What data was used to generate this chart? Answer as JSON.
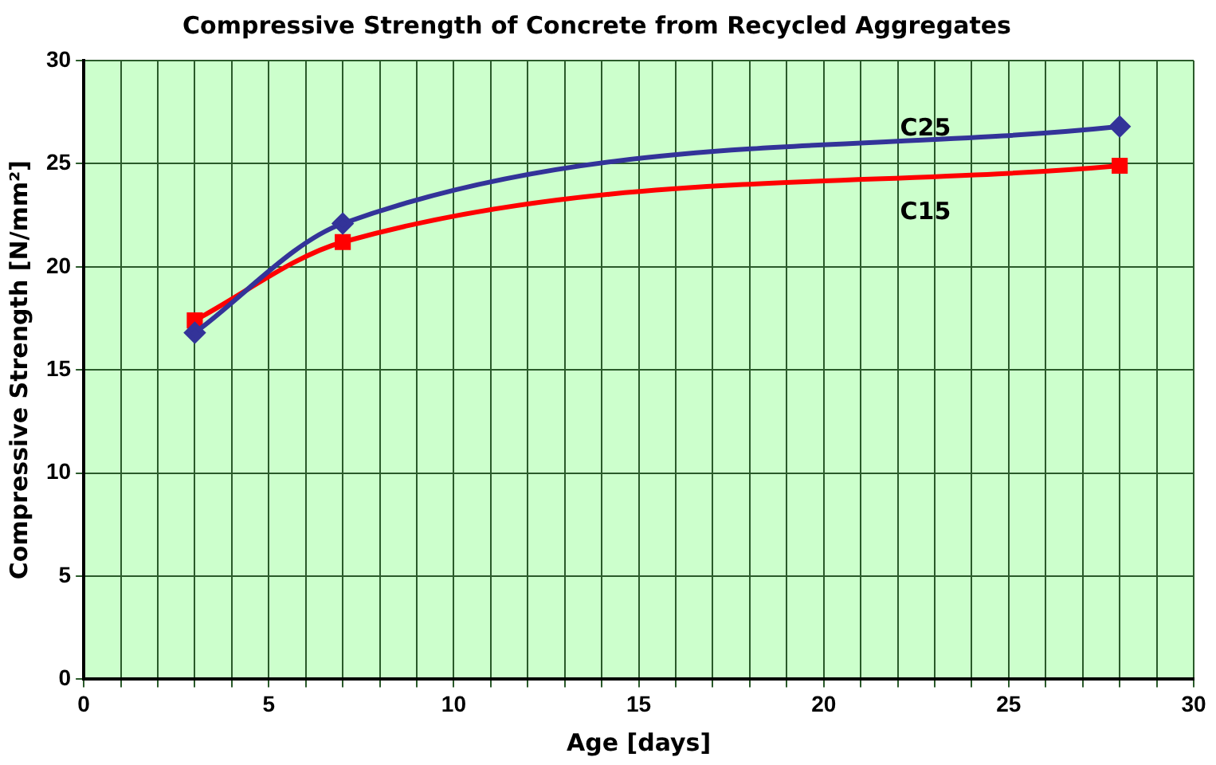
{
  "chart_data": {
    "type": "line",
    "title": "Compressive Strength of Concrete from Recycled Aggregates",
    "xlabel": "Age [days]",
    "ylabel": "Compressive Strength [N/mm²]",
    "x": [
      3,
      7,
      28
    ],
    "series": [
      {
        "name": "C25",
        "color": "#333399",
        "values": [
          16.8,
          22.1,
          26.8
        ],
        "marker": "diamond"
      },
      {
        "name": "C15",
        "color": "#ff0000",
        "values": [
          17.4,
          21.2,
          24.9
        ],
        "marker": "square"
      }
    ],
    "xlim": [
      0,
      30
    ],
    "ylim": [
      0,
      30
    ],
    "xticks": [
      0,
      {
        "value": 1,
        "label": null
      },
      {
        "value": 2,
        "label": null
      },
      {
        "value": 3,
        "label": null
      },
      {
        "value": 4,
        "label": null
      },
      5,
      {
        "value": 6,
        "label": null
      },
      {
        "value": 7,
        "label": null
      },
      {
        "value": 8,
        "label": null
      },
      {
        "value": 9,
        "label": null
      },
      10,
      {
        "value": 11,
        "label": null
      },
      {
        "value": 12,
        "label": null
      },
      {
        "value": 13,
        "label": null
      },
      {
        "value": 14,
        "label": null
      },
      15,
      {
        "value": 16,
        "label": null
      },
      {
        "value": 17,
        "label": null
      },
      {
        "value": 18,
        "label": null
      },
      {
        "value": 19,
        "label": null
      },
      20,
      {
        "value": 21,
        "label": null
      },
      {
        "value": 22,
        "label": null
      },
      {
        "value": 23,
        "label": null
      },
      {
        "value": 24,
        "label": null
      },
      25,
      {
        "value": 26,
        "label": null
      },
      {
        "value": 27,
        "label": null
      },
      {
        "value": 28,
        "label": null
      },
      {
        "value": 29,
        "label": null
      },
      30
    ],
    "yticks": [
      0,
      5,
      10,
      15,
      20,
      25,
      30
    ],
    "grid": true,
    "legend": false,
    "line_style": "solid"
  }
}
